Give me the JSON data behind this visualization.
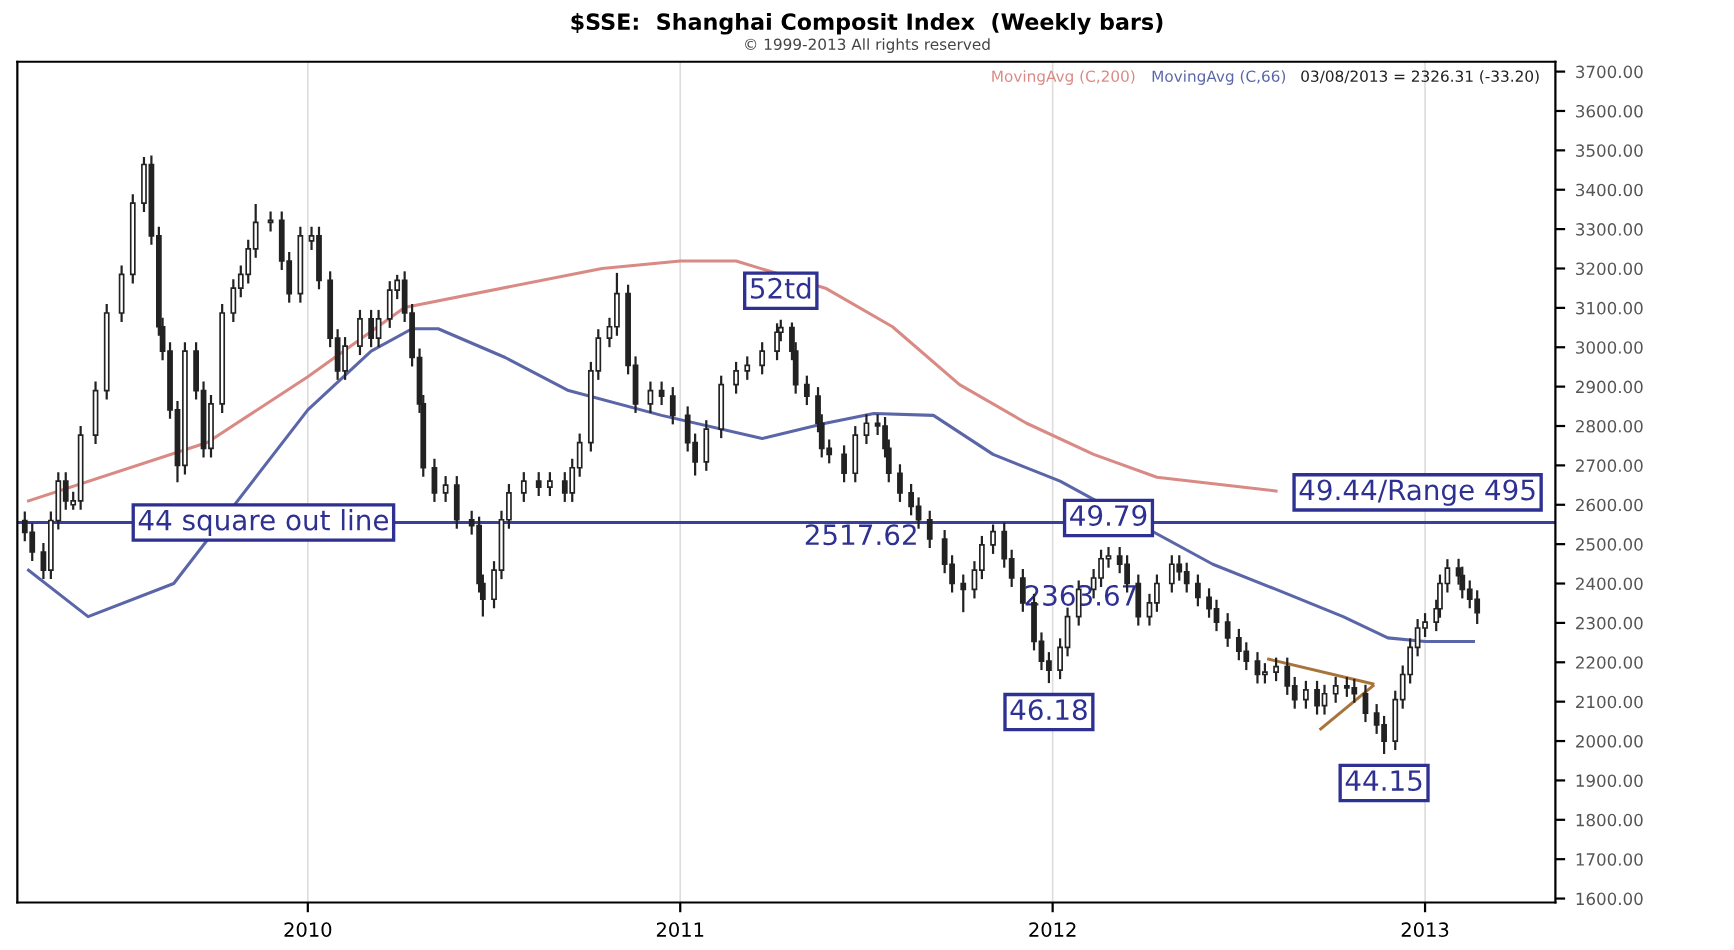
{
  "chart_data": {
    "type": "candlestick",
    "title": "$SSE:  Shanghai Composit Index  (Weekly bars)",
    "subtitle": "© 1999-2013 All rights reserved",
    "color": "#222222",
    "x": [
      2009.24,
      2009.26,
      2009.29,
      2009.31,
      2009.33,
      2009.35,
      2009.37,
      2009.39,
      2009.43,
      2009.46,
      2009.5,
      2009.53,
      2009.56,
      2009.58,
      2009.6,
      2009.61,
      2009.63,
      2009.65,
      2009.67,
      2009.7,
      2009.72,
      2009.74,
      2009.77,
      2009.8,
      2009.82,
      2009.84,
      2009.86,
      2009.9,
      2009.93,
      2009.95,
      2009.98,
      2010.01,
      2010.03,
      2010.06,
      2010.08,
      2010.1,
      2010.14,
      2010.17,
      2010.19,
      2010.22,
      2010.24,
      2010.26,
      2010.28,
      2010.3,
      2010.31,
      2010.34,
      2010.37,
      2010.4,
      2010.44,
      2010.46,
      2010.47,
      2010.5,
      2010.52,
      2010.54,
      2010.58,
      2010.62,
      2010.65,
      2010.69,
      2010.71,
      2010.73,
      2010.76,
      2010.78,
      2010.81,
      2010.83,
      2010.86,
      2010.88,
      2010.92,
      2010.95,
      2010.98,
      2011.02,
      2011.04,
      2011.07,
      2011.11,
      2011.15,
      2011.18,
      2011.22,
      2011.26,
      2011.27,
      2011.3,
      2011.31,
      2011.34,
      2011.37,
      2011.38,
      2011.4,
      2011.44,
      2011.47,
      2011.5,
      2011.53,
      2011.55,
      2011.56,
      2011.59,
      2011.62,
      2011.64,
      2011.67,
      2011.71,
      2011.73,
      2011.76,
      2011.79,
      2011.81,
      2011.84,
      2011.87,
      2011.89,
      2011.92,
      2011.95,
      2011.97,
      2011.99,
      2012.02,
      2012.04,
      2012.07,
      2012.11,
      2012.13,
      2012.15,
      2012.18,
      2012.2,
      2012.23,
      2012.26,
      2012.28,
      2012.32,
      2012.34,
      2012.36,
      2012.39,
      2012.42,
      2012.44,
      2012.47,
      2012.5,
      2012.52,
      2012.55,
      2012.57,
      2012.6,
      2012.63,
      2012.65,
      2012.68,
      2012.71,
      2012.73,
      2012.76,
      2012.79,
      2012.81,
      2012.84,
      2012.87,
      2012.89,
      2012.92,
      2012.94,
      2012.96,
      2012.98,
      2013.0,
      2013.03,
      2013.04,
      2013.06,
      2013.09,
      2013.1,
      2013.12,
      2013.14
    ],
    "ohlc": [
      [
        2560,
        2580,
        2510,
        2530
      ],
      [
        2530,
        2550,
        2460,
        2480
      ],
      [
        2480,
        2500,
        2414,
        2434
      ],
      [
        2434,
        2580,
        2414,
        2560
      ],
      [
        2560,
        2680,
        2540,
        2660
      ],
      [
        2660,
        2680,
        2590,
        2610
      ],
      [
        2600,
        2630,
        2590,
        2610
      ],
      [
        2610,
        2797,
        2590,
        2777
      ],
      [
        2777,
        2910,
        2757,
        2890
      ],
      [
        2890,
        3107,
        2870,
        3087
      ],
      [
        3087,
        3205,
        3067,
        3185
      ],
      [
        3185,
        3386,
        3165,
        3366
      ],
      [
        3366,
        3480,
        3346,
        3464
      ],
      [
        3464,
        3484,
        3263,
        3283
      ],
      [
        3283,
        3303,
        3032,
        3052
      ],
      [
        3052,
        3072,
        2970,
        2990
      ],
      [
        2990,
        3010,
        2821,
        2841
      ],
      [
        2841,
        2861,
        2660,
        2700
      ],
      [
        2700,
        3010,
        2680,
        2990
      ],
      [
        2990,
        3010,
        2870,
        2890
      ],
      [
        2890,
        2910,
        2723,
        2743
      ],
      [
        2743,
        2876,
        2723,
        2856
      ],
      [
        2856,
        3107,
        2836,
        3087
      ],
      [
        3087,
        3170,
        3067,
        3150
      ],
      [
        3150,
        3205,
        3130,
        3185
      ],
      [
        3185,
        3270,
        3165,
        3250
      ],
      [
        3250,
        3361,
        3230,
        3317
      ],
      [
        3317,
        3342,
        3297,
        3322
      ],
      [
        3322,
        3342,
        3199,
        3219
      ],
      [
        3219,
        3239,
        3116,
        3136
      ],
      [
        3136,
        3303,
        3116,
        3283
      ],
      [
        3270,
        3303,
        3250,
        3283
      ],
      [
        3283,
        3303,
        3150,
        3170
      ],
      [
        3170,
        3190,
        3003,
        3023
      ],
      [
        3023,
        3043,
        2920,
        2940
      ],
      [
        2940,
        3023,
        2920,
        3003
      ],
      [
        3003,
        3092,
        2983,
        3072
      ],
      [
        3072,
        3092,
        3003,
        3023
      ],
      [
        3023,
        3092,
        3003,
        3072
      ],
      [
        3072,
        3165,
        3052,
        3145
      ],
      [
        3145,
        3181,
        3125,
        3170
      ],
      [
        3170,
        3190,
        3067,
        3087
      ],
      [
        3087,
        3107,
        2954,
        2974
      ],
      [
        2974,
        2994,
        2836,
        2856
      ],
      [
        2856,
        2876,
        2674,
        2694
      ],
      [
        2694,
        2714,
        2610,
        2630
      ],
      [
        2630,
        2670,
        2610,
        2650
      ],
      [
        2650,
        2670,
        2542,
        2562
      ],
      [
        2562,
        2582,
        2527,
        2547
      ],
      [
        2547,
        2567,
        2380,
        2400
      ],
      [
        2400,
        2420,
        2319,
        2360
      ],
      [
        2360,
        2454,
        2340,
        2434
      ],
      [
        2434,
        2582,
        2414,
        2562
      ],
      [
        2562,
        2650,
        2542,
        2630
      ],
      [
        2630,
        2680,
        2610,
        2660
      ],
      [
        2660,
        2680,
        2625,
        2645
      ],
      [
        2645,
        2680,
        2625,
        2660
      ],
      [
        2660,
        2680,
        2610,
        2630
      ],
      [
        2630,
        2714,
        2610,
        2694
      ],
      [
        2694,
        2778,
        2674,
        2758
      ],
      [
        2758,
        2960,
        2738,
        2940
      ],
      [
        2940,
        3043,
        2920,
        3023
      ],
      [
        3023,
        3072,
        3003,
        3052
      ],
      [
        3052,
        3186,
        3032,
        3136
      ],
      [
        3136,
        3156,
        2934,
        2954
      ],
      [
        2954,
        2974,
        2836,
        2856
      ],
      [
        2856,
        2910,
        2836,
        2890
      ],
      [
        2890,
        2910,
        2856,
        2876
      ],
      [
        2876,
        2896,
        2807,
        2827
      ],
      [
        2827,
        2847,
        2738,
        2758
      ],
      [
        2758,
        2778,
        2677,
        2709
      ],
      [
        2709,
        2812,
        2689,
        2792
      ],
      [
        2792,
        2925,
        2772,
        2905
      ],
      [
        2905,
        2960,
        2885,
        2940
      ],
      [
        2940,
        2974,
        2920,
        2954
      ],
      [
        2954,
        3010,
        2934,
        2990
      ],
      [
        2990,
        3058,
        2970,
        3038
      ],
      [
        3038,
        3067,
        3018,
        3050
      ],
      [
        3050,
        3060,
        2970,
        2990
      ],
      [
        2990,
        3010,
        2885,
        2905
      ],
      [
        2905,
        2925,
        2856,
        2876
      ],
      [
        2876,
        2896,
        2787,
        2807
      ],
      [
        2807,
        2827,
        2723,
        2743
      ],
      [
        2743,
        2763,
        2708,
        2728
      ],
      [
        2728,
        2748,
        2660,
        2680
      ],
      [
        2680,
        2797,
        2660,
        2777
      ],
      [
        2777,
        2827,
        2757,
        2807
      ],
      [
        2807,
        2827,
        2780,
        2800
      ],
      [
        2800,
        2820,
        2723,
        2743
      ],
      [
        2743,
        2763,
        2660,
        2680
      ],
      [
        2680,
        2700,
        2610,
        2630
      ],
      [
        2630,
        2650,
        2576,
        2596
      ],
      [
        2596,
        2616,
        2542,
        2562
      ],
      [
        2562,
        2582,
        2493,
        2513
      ],
      [
        2513,
        2533,
        2429,
        2449
      ],
      [
        2449,
        2469,
        2380,
        2400
      ],
      [
        2400,
        2420,
        2330,
        2385
      ],
      [
        2385,
        2454,
        2365,
        2434
      ],
      [
        2434,
        2518,
        2414,
        2498
      ],
      [
        2498,
        2547,
        2478,
        2532
      ],
      [
        2532,
        2552,
        2443,
        2463
      ],
      [
        2463,
        2483,
        2394,
        2414
      ],
      [
        2414,
        2434,
        2331,
        2351
      ],
      [
        2351,
        2371,
        2233,
        2253
      ],
      [
        2253,
        2273,
        2183,
        2203
      ],
      [
        2203,
        2223,
        2150,
        2180
      ],
      [
        2180,
        2258,
        2160,
        2238
      ],
      [
        2238,
        2336,
        2218,
        2316
      ],
      [
        2316,
        2405,
        2296,
        2385
      ],
      [
        2385,
        2434,
        2365,
        2414
      ],
      [
        2414,
        2483,
        2394,
        2463
      ],
      [
        2463,
        2490,
        2443,
        2470
      ],
      [
        2470,
        2490,
        2429,
        2449
      ],
      [
        2449,
        2469,
        2380,
        2400
      ],
      [
        2400,
        2420,
        2296,
        2316
      ],
      [
        2316,
        2371,
        2296,
        2351
      ],
      [
        2351,
        2420,
        2331,
        2400
      ],
      [
        2400,
        2469,
        2380,
        2449
      ],
      [
        2449,
        2469,
        2410,
        2430
      ],
      [
        2430,
        2450,
        2380,
        2400
      ],
      [
        2400,
        2420,
        2345,
        2365
      ],
      [
        2365,
        2385,
        2316,
        2336
      ],
      [
        2336,
        2356,
        2282,
        2302
      ],
      [
        2302,
        2322,
        2242,
        2262
      ],
      [
        2262,
        2282,
        2208,
        2228
      ],
      [
        2228,
        2248,
        2183,
        2203
      ],
      [
        2203,
        2223,
        2149,
        2169
      ],
      [
        2169,
        2195,
        2149,
        2175
      ],
      [
        2175,
        2209,
        2155,
        2189
      ],
      [
        2189,
        2209,
        2120,
        2140
      ],
      [
        2140,
        2160,
        2085,
        2105
      ],
      [
        2105,
        2150,
        2085,
        2130
      ],
      [
        2130,
        2150,
        2070,
        2090
      ],
      [
        2090,
        2140,
        2070,
        2120
      ],
      [
        2120,
        2160,
        2100,
        2140
      ],
      [
        2140,
        2160,
        2115,
        2135
      ],
      [
        2135,
        2155,
        2100,
        2120
      ],
      [
        2120,
        2140,
        2051,
        2071
      ],
      [
        2071,
        2091,
        2021,
        2041
      ],
      [
        2041,
        2061,
        1970,
        2000
      ],
      [
        2000,
        2125,
        1980,
        2105
      ],
      [
        2105,
        2189,
        2085,
        2169
      ],
      [
        2169,
        2258,
        2149,
        2238
      ],
      [
        2238,
        2307,
        2218,
        2287
      ],
      [
        2287,
        2322,
        2267,
        2302
      ],
      [
        2302,
        2356,
        2282,
        2336
      ],
      [
        2336,
        2420,
        2316,
        2400
      ],
      [
        2400,
        2459,
        2380,
        2439
      ],
      [
        2439,
        2460,
        2400,
        2420
      ],
      [
        2420,
        2440,
        2365,
        2385
      ],
      [
        2385,
        2405,
        2340,
        2360
      ],
      [
        2360,
        2380,
        2300,
        2326
      ]
    ],
    "series": [
      {
        "name": "MovingAvg (C,200)",
        "type": "line",
        "color": "#d98a84",
        "x": [
          2009.25,
          2009.73,
          2010.0,
          2010.26,
          2010.79,
          2011.0,
          2011.15,
          2011.39,
          2011.57,
          2011.75,
          2011.93,
          2012.11,
          2012.28,
          2012.6
        ],
        "values": [
          2610,
          2758,
          2925,
          3101,
          3200,
          3219,
          3219,
          3150,
          3052,
          2905,
          2807,
          2728,
          2670,
          2635
        ]
      },
      {
        "name": "MovingAvg (C,66)",
        "type": "line",
        "color": "#5b66a8",
        "x": [
          2009.25,
          2009.41,
          2009.64,
          2010.0,
          2010.17,
          2010.28,
          2010.35,
          2010.53,
          2010.7,
          2010.95,
          2011.22,
          2011.39,
          2011.52,
          2011.68,
          2011.84,
          2012.02,
          2012.43,
          2012.6,
          2012.78,
          2012.9,
          2013.0,
          2013.13
        ],
        "values": [
          2434,
          2316,
          2400,
          2841,
          2990,
          3047,
          3047,
          2974,
          2890,
          2827,
          2768,
          2807,
          2832,
          2827,
          2728,
          2660,
          2449,
          2385,
          2316,
          2262,
          2253,
          2253
        ]
      },
      {
        "type": "line",
        "color": "#a8743c",
        "x": [
          2012.58,
          2012.86
        ],
        "values": [
          2208,
          2145
        ]
      },
      {
        "type": "line",
        "color": "#a8743c",
        "x": [
          2012.72,
          2012.86
        ],
        "values": [
          2031,
          2140
        ]
      }
    ],
    "ref_lines": [
      {
        "axis": "y",
        "value": 2555,
        "label": "44 square out line",
        "color": "#3a3f99"
      }
    ],
    "annotations": [
      "03/08/2013 = 2326.31 (-33.20)",
      {
        "text": "52td",
        "x": 2011.27,
        "y": 3067
      },
      {
        "text": "2517.62",
        "x": 2011.67,
        "y": 2517.62
      },
      {
        "text": "49.79",
        "x": 2012.15,
        "y": 2490
      },
      {
        "text": "2363.67",
        "x": 2012.26,
        "y": 2363.67
      },
      {
        "text": "46.18",
        "x": 2011.99,
        "y": 2150
      },
      {
        "text": "44.15",
        "x": 2012.89,
        "y": 1970
      },
      {
        "text": "49.44/Range 495",
        "x": 2012.98,
        "y": 2555
      }
    ],
    "xlim": [
      2009.22,
      2013.35
    ],
    "xticks": [
      2010,
      2011,
      2012,
      2013
    ],
    "ylim": [
      1590,
      3725
    ],
    "yticks": [
      {
        "value": 1600,
        "label": "1600.00"
      },
      {
        "value": 1700,
        "label": "1700.00"
      },
      {
        "value": 1800,
        "label": "1800.00"
      },
      {
        "value": 1900,
        "label": "1900.00"
      },
      {
        "value": 2000,
        "label": "2000.00"
      },
      {
        "value": 2100,
        "label": "2100.00"
      },
      {
        "value": 2200,
        "label": "2200.00"
      },
      {
        "value": 2300,
        "label": "2300.00"
      },
      {
        "value": 2400,
        "label": "2400.00"
      },
      {
        "value": 2500,
        "label": "2500.00"
      },
      {
        "value": 2600,
        "label": "2600.00"
      },
      {
        "value": 2700,
        "label": "2700.00"
      },
      {
        "value": 2800,
        "label": "2800.00"
      },
      {
        "value": 2900,
        "label": "2900.00"
      },
      {
        "value": 3000,
        "label": "3000.00"
      },
      {
        "value": 3100,
        "label": "3100.00"
      },
      {
        "value": 3200,
        "label": "3200.00"
      },
      {
        "value": 3300,
        "label": "3300.00"
      },
      {
        "value": 3400,
        "label": "3400.00"
      },
      {
        "value": 3500,
        "label": "3500.00"
      },
      {
        "value": 3600,
        "label": "3600.00"
      },
      {
        "value": 3700,
        "label": "3700.00"
      }
    ],
    "grid": "x",
    "legend": "top right"
  }
}
